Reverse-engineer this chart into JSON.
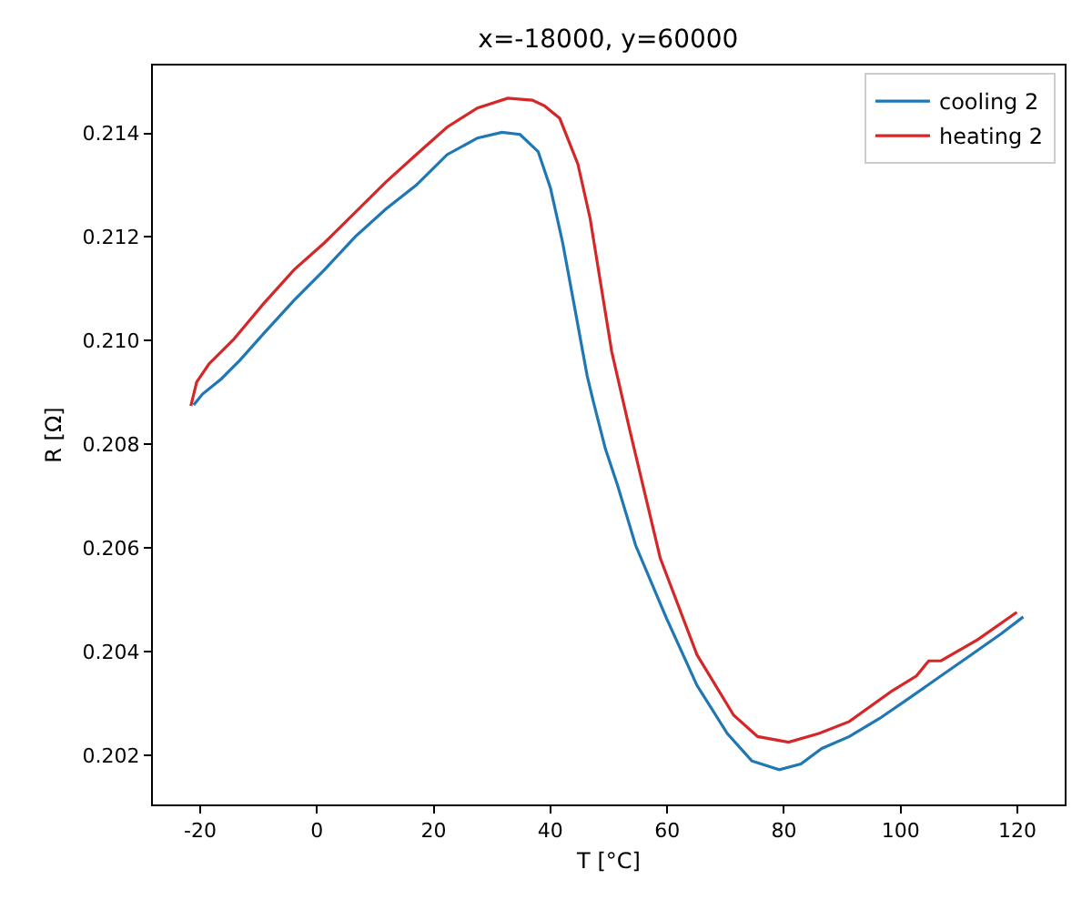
{
  "chart_data": {
    "type": "line",
    "title": "x=-18000, y=60000",
    "xlabel": "T [°C]",
    "ylabel": "R [Ω]",
    "xlim": [
      -28.1,
      128.1
    ],
    "xticks": [
      -20,
      0,
      20,
      40,
      60,
      80,
      100,
      120
    ],
    "ylim": [
      0.20105,
      0.21531
    ],
    "yticks": [
      {
        "value": 0.202,
        "label": "0.202"
      },
      {
        "value": 0.204,
        "label": "0.204"
      },
      {
        "value": 0.206,
        "label": "0.206"
      },
      {
        "value": 0.208,
        "label": "0.208"
      },
      {
        "value": 0.21,
        "label": "0.210"
      },
      {
        "value": 0.212,
        "label": "0.212"
      },
      {
        "value": 0.214,
        "label": "0.214"
      }
    ],
    "grid": false,
    "legend": "top right",
    "marker": "none",
    "line_style": "solid",
    "series": [
      {
        "name": "cooling 2",
        "color": "#1f77b4",
        "x": [
          -21.1,
          -19.6,
          -16.4,
          -13.3,
          -9.1,
          -3.9,
          1.3,
          6.6,
          11.8,
          17.0,
          22.3,
          27.5,
          31.7,
          34.8,
          37.9,
          40.0,
          42.1,
          44.2,
          46.3,
          47.3,
          49.4,
          51.5,
          54.6,
          59.9,
          65.1,
          70.3,
          74.5,
          79.2,
          82.9,
          86.5,
          91.2,
          96.4,
          101.7,
          106.9,
          112.1,
          117.3,
          121.0
        ],
        "values": [
          0.20876,
          0.20897,
          0.20926,
          0.20961,
          0.21014,
          0.21078,
          0.21137,
          0.21201,
          0.21254,
          0.213,
          0.21359,
          0.21391,
          0.21402,
          0.21398,
          0.21365,
          0.21295,
          0.21189,
          0.21061,
          0.20932,
          0.20885,
          0.20792,
          0.20721,
          0.20605,
          0.20464,
          0.20335,
          0.20242,
          0.20189,
          0.20172,
          0.20183,
          0.20213,
          0.20236,
          0.20271,
          0.20312,
          0.20353,
          0.20394,
          0.20435,
          0.20467
        ]
      },
      {
        "name": "heating 2",
        "color": "#d62728",
        "x": [
          -21.6,
          -20.6,
          -18.5,
          -14.3,
          -9.1,
          -3.9,
          1.3,
          6.6,
          11.8,
          17.0,
          22.3,
          27.5,
          32.7,
          36.9,
          39.0,
          41.6,
          44.7,
          46.8,
          50.5,
          53.6,
          58.8,
          65.1,
          71.4,
          75.5,
          80.8,
          86.0,
          91.2,
          98.5,
          102.7,
          104.8,
          106.9,
          113.2,
          119.9
        ],
        "values": [
          0.20874,
          0.2092,
          0.20955,
          0.21002,
          0.21072,
          0.21137,
          0.21189,
          0.21248,
          0.21306,
          0.21359,
          0.21412,
          0.21449,
          0.21468,
          0.21464,
          0.21453,
          0.21429,
          0.21341,
          0.21236,
          0.20979,
          0.20827,
          0.20581,
          0.20394,
          0.20277,
          0.20236,
          0.20225,
          0.20242,
          0.20265,
          0.20324,
          0.20353,
          0.20382,
          0.20382,
          0.20423,
          0.20476
        ]
      }
    ]
  }
}
